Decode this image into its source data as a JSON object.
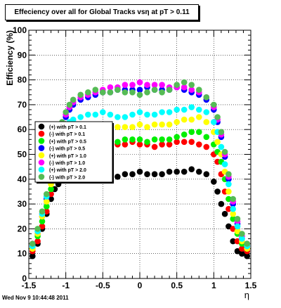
{
  "title": "Effeciency over all for Global Tracks vsη at pT > 0.11",
  "timestamp": "Wed Nov  9 10:44:48 2011",
  "chart_data": {
    "type": "scatter",
    "xlabel": "η",
    "ylabel": "Efficiency (%)",
    "xlim": [
      -1.5,
      1.5
    ],
    "ylim": [
      0,
      100
    ],
    "x_ticks": [
      "-1.5",
      "-1",
      "-0.5",
      "0",
      "0.5",
      "1",
      "1.5"
    ],
    "y_ticks": [
      "0",
      "10",
      "20",
      "30",
      "40",
      "50",
      "60",
      "70",
      "80",
      "90",
      "100"
    ],
    "grid": true,
    "legend_position": "left-middle",
    "series": [
      {
        "name": "(+) with pT > 0.1",
        "color": "#000000",
        "x": [
          -1.45,
          -1.38,
          -1.32,
          -1.26,
          -1.2,
          -1.15,
          -1.1,
          -1.05,
          -1.0,
          -0.95,
          -0.9,
          -0.8,
          -0.7,
          -0.6,
          -0.5,
          -0.4,
          -0.3,
          -0.2,
          -0.1,
          0.0,
          0.1,
          0.2,
          0.3,
          0.4,
          0.5,
          0.6,
          0.7,
          0.8,
          0.9,
          1.0,
          1.05,
          1.1,
          1.15,
          1.2,
          1.26,
          1.32,
          1.38,
          1.45
        ],
        "y": [
          9,
          14,
          20,
          26,
          32,
          36,
          38,
          40,
          41,
          42,
          42,
          41,
          41,
          42,
          41,
          41,
          41,
          42,
          42,
          43,
          42,
          42,
          42,
          43,
          43,
          43,
          44,
          43,
          42,
          39,
          35,
          30,
          26,
          21,
          15,
          11,
          10,
          9
        ]
      },
      {
        "name": "(-) with pT > 0.1",
        "color": "#ff0000",
        "x": [
          -1.45,
          -1.38,
          -1.32,
          -1.26,
          -1.2,
          -1.15,
          -1.1,
          -1.05,
          -1.0,
          -0.95,
          -0.9,
          -0.8,
          -0.7,
          -0.6,
          -0.5,
          -0.4,
          -0.3,
          -0.2,
          -0.1,
          0.0,
          0.1,
          0.2,
          0.3,
          0.4,
          0.5,
          0.6,
          0.7,
          0.8,
          0.9,
          1.0,
          1.05,
          1.1,
          1.15,
          1.2,
          1.26,
          1.32,
          1.38,
          1.45
        ],
        "y": [
          11,
          15,
          21,
          27,
          34,
          40,
          44,
          47,
          49,
          51,
          51,
          52,
          53,
          54,
          53,
          53,
          54,
          54,
          55,
          54,
          54,
          53,
          54,
          54,
          55,
          55,
          55,
          54,
          53,
          50,
          47,
          42,
          35,
          28,
          20,
          15,
          12,
          11
        ]
      },
      {
        "name": "(+) with pT > 0.5",
        "color": "#00ee00",
        "x": [
          -1.45,
          -1.38,
          -1.32,
          -1.26,
          -1.2,
          -1.15,
          -1.1,
          -1.05,
          -1.0,
          -0.95,
          -0.9,
          -0.8,
          -0.7,
          -0.6,
          -0.5,
          -0.4,
          -0.3,
          -0.2,
          -0.1,
          0.0,
          0.1,
          0.2,
          0.3,
          0.4,
          0.5,
          0.6,
          0.7,
          0.8,
          0.9,
          1.0,
          1.05,
          1.1,
          1.15,
          1.2,
          1.26,
          1.32,
          1.38,
          1.45
        ],
        "y": [
          12,
          17,
          23,
          29,
          36,
          42,
          46,
          49,
          51,
          52,
          53,
          53,
          54,
          55,
          55,
          55,
          55,
          56,
          56,
          56,
          55,
          56,
          56,
          56,
          57,
          58,
          59,
          59,
          57,
          54,
          51,
          47,
          40,
          32,
          24,
          18,
          14,
          12
        ]
      },
      {
        "name": "(-) with pT > 0.5",
        "color": "#0000ff",
        "x": [
          -1.45,
          -1.38,
          -1.32,
          -1.26,
          -1.2,
          -1.15,
          -1.1,
          -1.05,
          -1.0,
          -0.95,
          -0.9,
          -0.8,
          -0.7,
          -0.6,
          -0.5,
          -0.4,
          -0.3,
          -0.2,
          -0.1,
          0.0,
          0.1,
          0.2,
          0.3,
          0.4,
          0.5,
          0.6,
          0.7,
          0.8,
          0.9,
          1.0,
          1.05,
          1.1,
          1.15,
          1.2,
          1.26,
          1.32,
          1.38,
          1.45
        ],
        "y": [
          13,
          18,
          25,
          32,
          40,
          48,
          55,
          61,
          65,
          68,
          70,
          72,
          73,
          74,
          75,
          75,
          76,
          76,
          76,
          76,
          77,
          76,
          76,
          76,
          77,
          76,
          75,
          74,
          72,
          68,
          63,
          57,
          49,
          40,
          30,
          22,
          16,
          13
        ]
      },
      {
        "name": "(+) with pT > 1.0",
        "color": "#ffff00",
        "x": [
          -1.45,
          -1.38,
          -1.32,
          -1.26,
          -1.2,
          -1.15,
          -1.1,
          -1.05,
          -1.0,
          -0.95,
          -0.9,
          -0.8,
          -0.7,
          -0.6,
          -0.5,
          -0.4,
          -0.3,
          -0.2,
          -0.1,
          0.0,
          0.1,
          0.2,
          0.3,
          0.4,
          0.5,
          0.6,
          0.7,
          0.8,
          0.9,
          1.0,
          1.05,
          1.1,
          1.15,
          1.2,
          1.26,
          1.32,
          1.38,
          1.45
        ],
        "y": [
          12,
          18,
          25,
          31,
          38,
          45,
          51,
          55,
          58,
          60,
          61,
          62,
          62,
          62,
          62,
          62,
          61,
          61,
          61,
          62,
          61,
          62,
          62,
          62,
          63,
          64,
          64,
          65,
          63,
          59,
          55,
          50,
          43,
          35,
          26,
          19,
          15,
          12
        ]
      },
      {
        "name": "(-) with pT > 1.0",
        "color": "#ff00ff",
        "x": [
          -1.45,
          -1.38,
          -1.32,
          -1.26,
          -1.2,
          -1.15,
          -1.1,
          -1.05,
          -1.0,
          -0.95,
          -0.9,
          -0.8,
          -0.7,
          -0.6,
          -0.5,
          -0.4,
          -0.3,
          -0.2,
          -0.1,
          0.0,
          0.1,
          0.2,
          0.3,
          0.4,
          0.5,
          0.6,
          0.7,
          0.8,
          0.9,
          1.0,
          1.05,
          1.1,
          1.15,
          1.2,
          1.26,
          1.32,
          1.38,
          1.45
        ],
        "y": [
          14,
          19,
          26,
          33,
          41,
          49,
          56,
          62,
          66,
          69,
          71,
          73,
          74,
          75,
          76,
          77,
          77,
          78,
          78,
          79,
          78,
          78,
          78,
          77,
          77,
          77,
          76,
          75,
          73,
          69,
          64,
          58,
          50,
          41,
          31,
          23,
          17,
          14
        ]
      },
      {
        "name": "(+) with pT > 2.0",
        "color": "#00ffff",
        "x": [
          -1.45,
          -1.38,
          -1.32,
          -1.26,
          -1.2,
          -1.15,
          -1.1,
          -1.05,
          -1.0,
          -0.95,
          -0.9,
          -0.8,
          -0.7,
          -0.6,
          -0.5,
          -0.4,
          -0.3,
          -0.2,
          -0.1,
          0.0,
          0.1,
          0.2,
          0.3,
          0.4,
          0.5,
          0.6,
          0.7,
          0.8,
          0.9,
          1.0,
          1.05,
          1.1,
          1.15,
          1.2,
          1.26,
          1.32,
          1.38,
          1.45
        ],
        "y": [
          13,
          19,
          26,
          33,
          41,
          48,
          54,
          58,
          61,
          63,
          64,
          65,
          66,
          66,
          67,
          66,
          65,
          65,
          66,
          67,
          66,
          66,
          67,
          67,
          68,
          68,
          69,
          68,
          67,
          63,
          59,
          53,
          46,
          38,
          28,
          21,
          16,
          13
        ]
      },
      {
        "name": "(-) with pT > 2.0",
        "color": "#55bb55",
        "x": [
          -1.45,
          -1.38,
          -1.32,
          -1.26,
          -1.2,
          -1.15,
          -1.1,
          -1.05,
          -1.0,
          -0.95,
          -0.9,
          -0.8,
          -0.7,
          -0.6,
          -0.5,
          -0.4,
          -0.3,
          -0.2,
          -0.1,
          0.0,
          0.1,
          0.2,
          0.3,
          0.4,
          0.5,
          0.6,
          0.7,
          0.8,
          0.9,
          1.0,
          1.05,
          1.1,
          1.15,
          1.2,
          1.26,
          1.32,
          1.38,
          1.45
        ],
        "y": [
          14,
          20,
          27,
          34,
          42,
          50,
          57,
          63,
          67,
          70,
          72,
          74,
          75,
          76,
          75,
          75,
          76,
          75,
          75,
          74,
          75,
          76,
          75,
          76,
          78,
          79,
          78,
          76,
          73,
          70,
          65,
          59,
          51,
          42,
          32,
          24,
          18,
          14
        ]
      }
    ]
  }
}
